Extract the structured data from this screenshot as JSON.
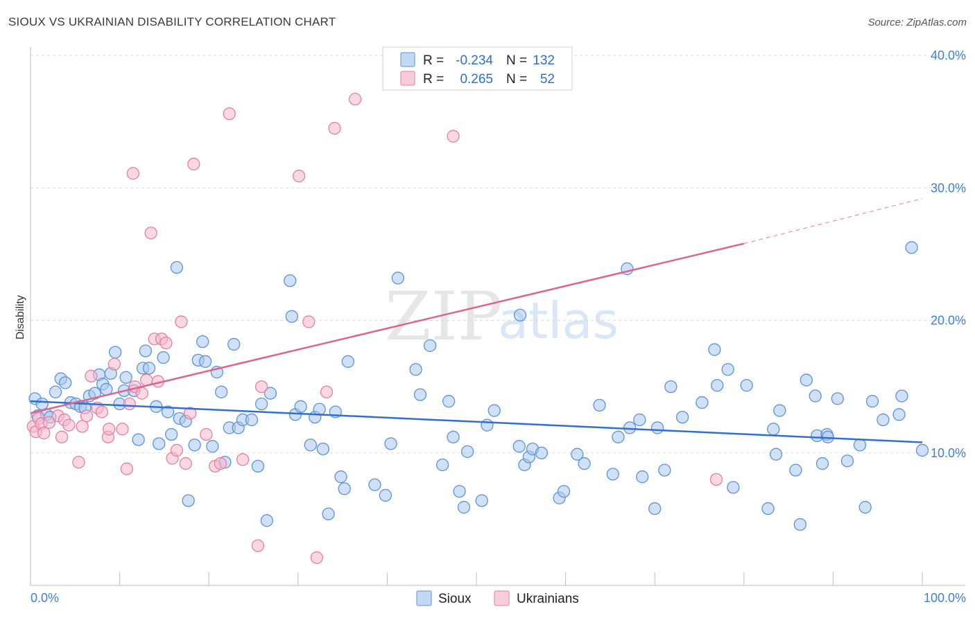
{
  "title": "SIOUX VS UKRAINIAN DISABILITY CORRELATION CHART",
  "source": "Source: ZipAtlas.com",
  "watermark": {
    "zip": "ZIP",
    "atlas": "atlas"
  },
  "legend": {
    "rows": [
      {
        "r_label": "R =",
        "r_value": "-0.234",
        "n_label": "N =",
        "n_value": "132"
      },
      {
        "r_label": "R =",
        "r_value": "0.265",
        "n_label": "N =",
        "n_value": "52"
      }
    ]
  },
  "colors": {
    "sioux_fill": "#a9c7ef",
    "sioux_stroke": "#5b93d6",
    "sioux_line": "#2e6fcf",
    "ukr_fill": "#f5b8cc",
    "ukr_stroke": "#e57fa2",
    "ukr_line": "#e0628e",
    "grid": "#d9d9d9",
    "tick_label": "#3f7fd1"
  },
  "chart_data": {
    "type": "scatter",
    "title": "SIOUX VS UKRAINIAN DISABILITY CORRELATION CHART",
    "xlabel": "",
    "ylabel": "Disability",
    "xlim": [
      0,
      100
    ],
    "ylim": [
      0,
      40
    ],
    "y_ticks": [
      10,
      20,
      30,
      40
    ],
    "y_tick_labels": [
      "10.0%",
      "20.0%",
      "30.0%",
      "40.0%"
    ],
    "x_tick_labels": [
      "0.0%",
      "100.0%"
    ],
    "legend_position": "bottom-center",
    "series": [
      {
        "name": "Sioux",
        "r": -0.234,
        "n": 132,
        "trend": {
          "x": [
            0,
            100
          ],
          "y": [
            13.9,
            10.8
          ],
          "dashed_from": null
        },
        "points": [
          [
            0.5,
            14.1
          ],
          [
            0.8,
            12.8
          ],
          [
            1.3,
            13.7
          ],
          [
            1.8,
            12.9
          ],
          [
            2.2,
            12.7
          ],
          [
            2.8,
            14.6
          ],
          [
            3.4,
            15.6
          ],
          [
            3.9,
            15.3
          ],
          [
            4.5,
            13.8
          ],
          [
            5.1,
            13.7
          ],
          [
            5.6,
            13.5
          ],
          [
            6.1,
            13.4
          ],
          [
            6.6,
            14.3
          ],
          [
            7.2,
            14.5
          ],
          [
            7.7,
            15.9
          ],
          [
            8.1,
            15.2
          ],
          [
            8.5,
            14.8
          ],
          [
            9.0,
            16.0
          ],
          [
            9.5,
            17.6
          ],
          [
            10.0,
            13.7
          ],
          [
            10.5,
            14.7
          ],
          [
            10.7,
            15.7
          ],
          [
            11.6,
            14.7
          ],
          [
            12.1,
            11.0
          ],
          [
            12.6,
            16.4
          ],
          [
            12.9,
            17.7
          ],
          [
            13.3,
            16.4
          ],
          [
            14.1,
            13.5
          ],
          [
            14.4,
            10.7
          ],
          [
            14.9,
            17.2
          ],
          [
            15.4,
            13.1
          ],
          [
            15.8,
            11.4
          ],
          [
            16.4,
            24.0
          ],
          [
            16.7,
            12.6
          ],
          [
            17.4,
            12.4
          ],
          [
            17.7,
            6.4
          ],
          [
            18.4,
            10.6
          ],
          [
            18.8,
            17.0
          ],
          [
            19.3,
            18.4
          ],
          [
            19.6,
            16.9
          ],
          [
            20.4,
            10.5
          ],
          [
            20.9,
            16.1
          ],
          [
            21.4,
            14.6
          ],
          [
            21.8,
            9.3
          ],
          [
            22.3,
            11.9
          ],
          [
            22.8,
            18.2
          ],
          [
            23.3,
            11.9
          ],
          [
            23.8,
            12.5
          ],
          [
            24.8,
            12.5
          ],
          [
            25.5,
            9.0
          ],
          [
            25.9,
            13.7
          ],
          [
            26.5,
            4.9
          ],
          [
            26.9,
            14.5
          ],
          [
            29.1,
            23.0
          ],
          [
            29.3,
            20.3
          ],
          [
            29.7,
            12.9
          ],
          [
            30.3,
            13.5
          ],
          [
            31.4,
            10.6
          ],
          [
            31.9,
            12.7
          ],
          [
            32.4,
            13.3
          ],
          [
            32.8,
            10.3
          ],
          [
            33.4,
            5.4
          ],
          [
            34.2,
            13.1
          ],
          [
            34.8,
            8.2
          ],
          [
            35.2,
            7.3
          ],
          [
            35.6,
            16.9
          ],
          [
            38.6,
            7.6
          ],
          [
            39.8,
            6.8
          ],
          [
            40.4,
            10.7
          ],
          [
            41.2,
            23.2
          ],
          [
            43.2,
            16.3
          ],
          [
            43.7,
            14.4
          ],
          [
            44.8,
            18.1
          ],
          [
            46.2,
            9.1
          ],
          [
            46.9,
            13.9
          ],
          [
            47.4,
            11.2
          ],
          [
            48.1,
            7.1
          ],
          [
            48.6,
            5.9
          ],
          [
            49.0,
            10.1
          ],
          [
            50.6,
            6.4
          ],
          [
            51.2,
            12.1
          ],
          [
            52.0,
            13.2
          ],
          [
            54.8,
            10.5
          ],
          [
            54.9,
            20.4
          ],
          [
            55.4,
            9.1
          ],
          [
            55.9,
            9.7
          ],
          [
            56.3,
            10.3
          ],
          [
            57.3,
            10.0
          ],
          [
            59.3,
            6.6
          ],
          [
            59.8,
            7.1
          ],
          [
            61.3,
            9.9
          ],
          [
            62.1,
            9.2
          ],
          [
            63.8,
            13.6
          ],
          [
            65.3,
            8.4
          ],
          [
            65.9,
            11.2
          ],
          [
            66.9,
            23.9
          ],
          [
            67.2,
            11.9
          ],
          [
            68.3,
            12.5
          ],
          [
            68.6,
            8.2
          ],
          [
            70.0,
            5.8
          ],
          [
            70.3,
            11.9
          ],
          [
            71.1,
            8.7
          ],
          [
            71.8,
            15.0
          ],
          [
            73.1,
            12.7
          ],
          [
            75.3,
            13.8
          ],
          [
            76.7,
            17.8
          ],
          [
            77.0,
            15.1
          ],
          [
            78.2,
            16.3
          ],
          [
            78.8,
            7.4
          ],
          [
            80.3,
            15.1
          ],
          [
            82.7,
            5.8
          ],
          [
            83.3,
            11.8
          ],
          [
            83.6,
            9.9
          ],
          [
            84.0,
            13.2
          ],
          [
            85.8,
            8.7
          ],
          [
            86.3,
            4.6
          ],
          [
            87.0,
            15.5
          ],
          [
            88.0,
            14.3
          ],
          [
            88.2,
            11.3
          ],
          [
            88.8,
            9.2
          ],
          [
            89.3,
            11.4
          ],
          [
            89.4,
            11.2
          ],
          [
            90.5,
            14.1
          ],
          [
            91.6,
            9.4
          ],
          [
            93.0,
            10.6
          ],
          [
            93.6,
            5.9
          ],
          [
            94.4,
            13.9
          ],
          [
            95.6,
            12.5
          ],
          [
            97.4,
            12.9
          ],
          [
            97.7,
            14.3
          ],
          [
            98.8,
            25.5
          ],
          [
            100.0,
            10.2
          ]
        ]
      },
      {
        "name": "Ukrainians",
        "r": 0.265,
        "n": 52,
        "trend": {
          "x": [
            0,
            80,
            100
          ],
          "y": [
            13.0,
            25.8,
            29.2
          ],
          "dashed_from": 80
        },
        "points": [
          [
            0.3,
            12.0
          ],
          [
            0.6,
            11.6
          ],
          [
            0.9,
            12.6
          ],
          [
            1.2,
            12.2
          ],
          [
            1.5,
            11.5
          ],
          [
            2.1,
            12.3
          ],
          [
            3.1,
            12.8
          ],
          [
            3.5,
            11.2
          ],
          [
            3.8,
            12.5
          ],
          [
            4.3,
            12.1
          ],
          [
            5.4,
            9.3
          ],
          [
            5.8,
            12.0
          ],
          [
            6.3,
            12.8
          ],
          [
            6.8,
            15.8
          ],
          [
            7.5,
            13.4
          ],
          [
            8.0,
            13.1
          ],
          [
            8.7,
            11.2
          ],
          [
            8.8,
            11.8
          ],
          [
            9.4,
            16.7
          ],
          [
            10.3,
            11.8
          ],
          [
            10.8,
            8.8
          ],
          [
            11.1,
            13.7
          ],
          [
            11.5,
            31.1
          ],
          [
            11.7,
            15.0
          ],
          [
            12.5,
            14.5
          ],
          [
            13.0,
            15.5
          ],
          [
            13.5,
            26.6
          ],
          [
            13.9,
            18.6
          ],
          [
            14.3,
            15.4
          ],
          [
            14.7,
            18.6
          ],
          [
            15.2,
            18.3
          ],
          [
            15.9,
            9.6
          ],
          [
            16.4,
            10.2
          ],
          [
            16.9,
            19.9
          ],
          [
            17.4,
            9.2
          ],
          [
            17.9,
            13.0
          ],
          [
            18.3,
            31.8
          ],
          [
            19.7,
            11.4
          ],
          [
            20.7,
            9.0
          ],
          [
            21.3,
            9.2
          ],
          [
            22.3,
            35.6
          ],
          [
            23.8,
            9.5
          ],
          [
            25.5,
            3.0
          ],
          [
            25.9,
            15.0
          ],
          [
            30.1,
            30.9
          ],
          [
            31.2,
            19.9
          ],
          [
            32.1,
            2.1
          ],
          [
            33.2,
            14.6
          ],
          [
            34.1,
            34.5
          ],
          [
            36.4,
            36.7
          ],
          [
            47.4,
            33.9
          ],
          [
            76.9,
            8.0
          ]
        ]
      }
    ]
  },
  "bottom_legend": {
    "items": [
      {
        "label": "Sioux"
      },
      {
        "label": "Ukrainians"
      }
    ]
  }
}
